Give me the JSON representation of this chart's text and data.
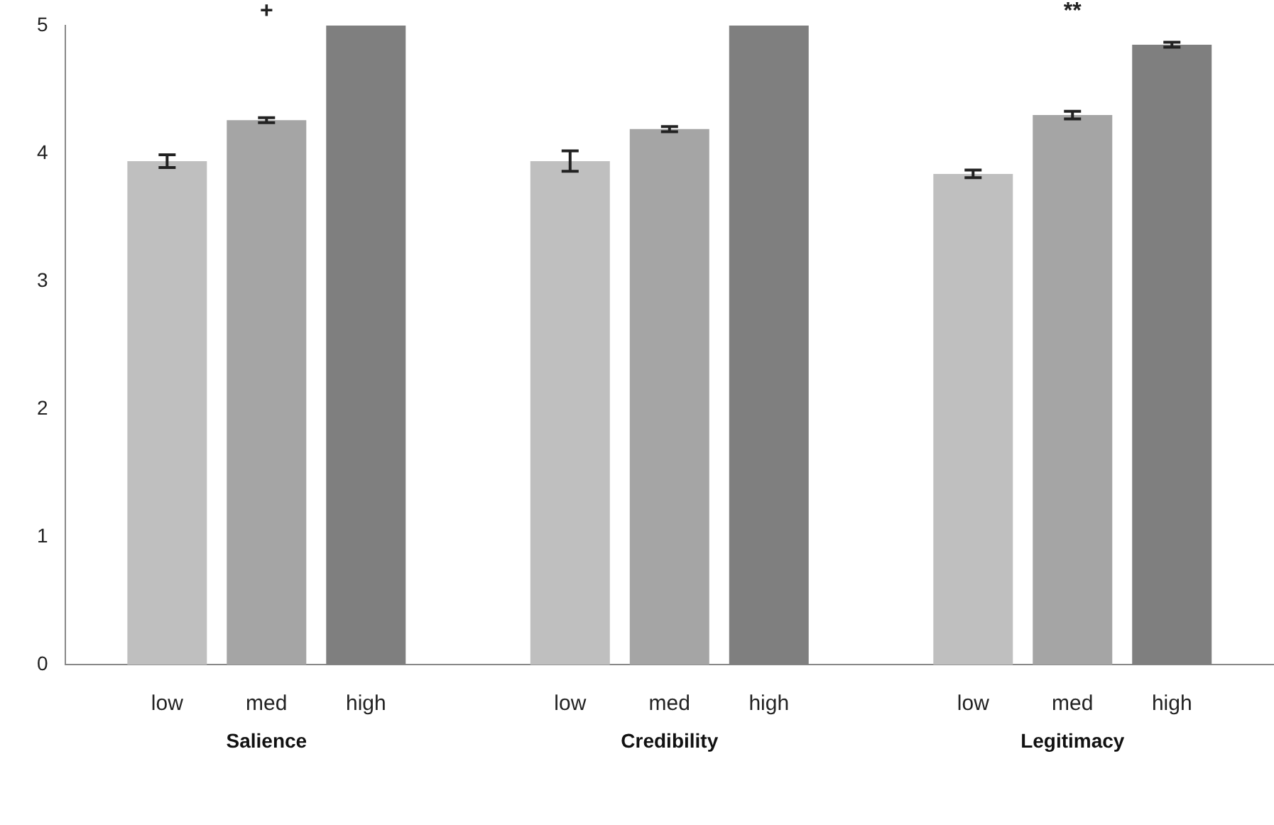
{
  "chart_data": {
    "type": "bar",
    "categories": [
      "Salience",
      "Credibility",
      "Legitimacy"
    ],
    "series": [
      {
        "name": "low",
        "color": "#bfbfbf",
        "values": [
          3.94,
          3.94,
          3.84
        ],
        "errors": [
          0.05,
          0.08,
          0.03
        ]
      },
      {
        "name": "med",
        "color": "#a5a5a5",
        "values": [
          4.26,
          4.19,
          4.3
        ],
        "errors": [
          0.02,
          0.02,
          0.03
        ]
      },
      {
        "name": "high",
        "color": "#7f7f7f",
        "values": [
          5,
          5,
          4.85
        ],
        "errors": [
          null,
          null,
          0.02
        ]
      }
    ],
    "ylim": [
      0,
      5
    ],
    "yticks": [
      0,
      1,
      2,
      3,
      4,
      5
    ],
    "grid": false,
    "legend": false,
    "annotations": [
      "+",
      "**"
    ]
  }
}
